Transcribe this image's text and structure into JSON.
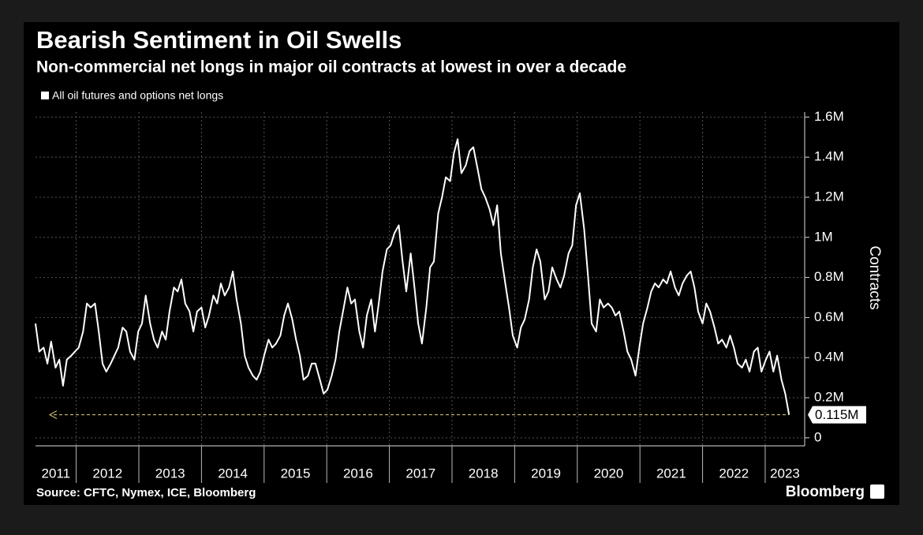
{
  "chart_data": {
    "type": "line",
    "title": "Bearish Sentiment in Oil Swells",
    "subtitle": "Non-commercial net longs in major oil contracts at lowest in over a decade",
    "y_label": "Contracts",
    "source": "Source: CFTC, Nymex, ICE, Bloomberg",
    "logo": "Bloomberg",
    "x": [
      2011.35,
      2011.41,
      2011.48,
      2011.54,
      2011.6,
      2011.67,
      2011.73,
      2011.79,
      2011.85,
      2011.92,
      2011.98,
      2012.04,
      2012.11,
      2012.17,
      2012.23,
      2012.3,
      2012.36,
      2012.42,
      2012.48,
      2012.55,
      2012.61,
      2012.67,
      2012.74,
      2012.8,
      2012.86,
      2012.93,
      2012.99,
      2013.05,
      2013.11,
      2013.18,
      2013.24,
      2013.3,
      2013.37,
      2013.43,
      2013.49,
      2013.56,
      2013.62,
      2013.68,
      2013.74,
      2013.81,
      2013.87,
      2013.93,
      2014.0,
      2014.06,
      2014.12,
      2014.19,
      2014.25,
      2014.31,
      2014.37,
      2014.44,
      2014.5,
      2014.56,
      2014.63,
      2014.69,
      2014.75,
      2014.82,
      2014.88,
      2014.94,
      2015.0,
      2015.07,
      2015.13,
      2015.19,
      2015.26,
      2015.32,
      2015.38,
      2015.45,
      2015.51,
      2015.57,
      2015.63,
      2015.7,
      2015.76,
      2015.82,
      2015.89,
      2015.95,
      2016.01,
      2016.08,
      2016.14,
      2016.2,
      2016.26,
      2016.33,
      2016.39,
      2016.45,
      2016.52,
      2016.58,
      2016.64,
      2016.71,
      2016.77,
      2016.83,
      2016.89,
      2016.96,
      2017.02,
      2017.08,
      2017.15,
      2017.21,
      2017.27,
      2017.34,
      2017.4,
      2017.46,
      2017.52,
      2017.59,
      2017.65,
      2017.71,
      2017.78,
      2017.84,
      2017.9,
      2017.97,
      2018.03,
      2018.09,
      2018.15,
      2018.22,
      2018.28,
      2018.34,
      2018.41,
      2018.47,
      2018.53,
      2018.6,
      2018.66,
      2018.72,
      2018.78,
      2018.85,
      2018.91,
      2018.97,
      2019.04,
      2019.1,
      2019.16,
      2019.23,
      2019.29,
      2019.35,
      2019.41,
      2019.48,
      2019.54,
      2019.6,
      2019.67,
      2019.73,
      2019.79,
      2019.86,
      2019.92,
      2019.98,
      2020.04,
      2020.11,
      2020.17,
      2020.23,
      2020.3,
      2020.36,
      2020.42,
      2020.49,
      2020.55,
      2020.61,
      2020.67,
      2020.74,
      2020.8,
      2020.86,
      2020.93,
      2020.99,
      2021.05,
      2021.12,
      2021.18,
      2021.24,
      2021.3,
      2021.37,
      2021.43,
      2021.49,
      2021.56,
      2021.62,
      2021.68,
      2021.75,
      2021.81,
      2021.87,
      2021.93,
      2022.0,
      2022.06,
      2022.12,
      2022.19,
      2022.25,
      2022.31,
      2022.38,
      2022.44,
      2022.5,
      2022.56,
      2022.63,
      2022.69,
      2022.75,
      2022.82,
      2022.88,
      2022.94,
      2023.01,
      2023.07,
      2023.13,
      2023.19,
      2023.26,
      2023.32,
      2023.38
    ],
    "series": [
      {
        "name": "All oil futures and options net longs",
        "color": "#ffffff",
        "values": [
          0.57,
          0.43,
          0.45,
          0.37,
          0.48,
          0.35,
          0.39,
          0.26,
          0.39,
          0.41,
          0.43,
          0.45,
          0.53,
          0.67,
          0.65,
          0.67,
          0.53,
          0.37,
          0.33,
          0.37,
          0.41,
          0.45,
          0.55,
          0.53,
          0.43,
          0.39,
          0.53,
          0.57,
          0.71,
          0.57,
          0.49,
          0.45,
          0.53,
          0.49,
          0.63,
          0.75,
          0.73,
          0.79,
          0.67,
          0.63,
          0.53,
          0.63,
          0.65,
          0.55,
          0.61,
          0.71,
          0.67,
          0.77,
          0.71,
          0.75,
          0.83,
          0.69,
          0.57,
          0.41,
          0.35,
          0.31,
          0.29,
          0.33,
          0.41,
          0.49,
          0.45,
          0.47,
          0.51,
          0.61,
          0.67,
          0.59,
          0.49,
          0.41,
          0.29,
          0.31,
          0.37,
          0.37,
          0.29,
          0.22,
          0.24,
          0.31,
          0.39,
          0.53,
          0.63,
          0.75,
          0.67,
          0.69,
          0.53,
          0.45,
          0.61,
          0.69,
          0.53,
          0.67,
          0.83,
          0.94,
          0.96,
          1.02,
          1.06,
          0.88,
          0.73,
          0.92,
          0.75,
          0.57,
          0.47,
          0.65,
          0.85,
          0.88,
          1.12,
          1.2,
          1.3,
          1.28,
          1.42,
          1.49,
          1.32,
          1.36,
          1.43,
          1.45,
          1.34,
          1.24,
          1.2,
          1.14,
          1.06,
          1.16,
          0.92,
          0.77,
          0.65,
          0.51,
          0.45,
          0.55,
          0.59,
          0.69,
          0.85,
          0.94,
          0.88,
          0.69,
          0.73,
          0.85,
          0.79,
          0.75,
          0.81,
          0.92,
          0.96,
          1.16,
          1.22,
          1.04,
          0.81,
          0.57,
          0.53,
          0.69,
          0.65,
          0.67,
          0.65,
          0.61,
          0.63,
          0.53,
          0.43,
          0.39,
          0.31,
          0.45,
          0.57,
          0.65,
          0.73,
          0.77,
          0.75,
          0.79,
          0.77,
          0.83,
          0.75,
          0.71,
          0.77,
          0.81,
          0.83,
          0.75,
          0.63,
          0.57,
          0.67,
          0.63,
          0.55,
          0.47,
          0.49,
          0.45,
          0.51,
          0.45,
          0.37,
          0.35,
          0.39,
          0.33,
          0.43,
          0.45,
          0.33,
          0.39,
          0.43,
          0.33,
          0.41,
          0.29,
          0.22,
          0.115
        ]
      }
    ],
    "last_value": {
      "value": 0.115,
      "label": "0.115M"
    },
    "xlim": [
      2011.35,
      2023.63
    ],
    "xticks": [
      2011,
      2012,
      2013,
      2014,
      2015,
      2016,
      2017,
      2018,
      2019,
      2020,
      2021,
      2022,
      2023
    ],
    "ylim": [
      -0.04,
      1.625
    ],
    "yticks": [
      0,
      {
        "value": 0.2,
        "label": "0.2M"
      },
      {
        "value": 0.4,
        "label": "0.4M"
      },
      {
        "value": 0.6,
        "label": "0.6M"
      },
      {
        "value": 0.8,
        "label": "0.8M"
      },
      {
        "value": 1,
        "label": "1M"
      },
      {
        "value": 1.2,
        "label": "1.2M"
      },
      {
        "value": 1.4,
        "label": "1.4M"
      },
      {
        "value": 1.6,
        "label": "1.6M"
      }
    ],
    "grid": true
  }
}
